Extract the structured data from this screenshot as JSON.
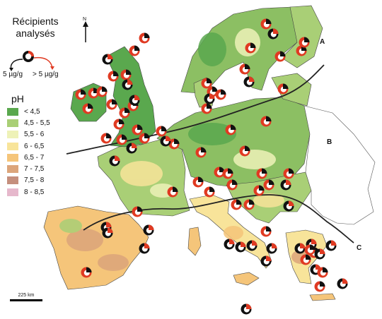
{
  "legend": {
    "title": "Récipients analysés",
    "rule_low": "5 µg/g",
    "rule_high": "> 5 µg/g",
    "north": "N",
    "ph_title": "pH",
    "ph_classes": [
      {
        "label": "< 4,5",
        "color": "#5aa84e"
      },
      {
        "label": "4,5 - 5,5",
        "color": "#a9cf76"
      },
      {
        "label": "5,5 - 6",
        "color": "#eef2b8"
      },
      {
        "label": "6 - 6,5",
        "color": "#f8e49a"
      },
      {
        "label": "6,5 - 7",
        "color": "#f5c57a"
      },
      {
        "label": "7 - 7,5",
        "color": "#dca57b"
      },
      {
        "label": "7,5 - 8",
        "color": "#c58f7d"
      },
      {
        "label": "8 - 8,5",
        "color": "#e6b8cc"
      }
    ],
    "marker_dark": "#111111",
    "marker_red": "#e03a22"
  },
  "zones": {
    "a": "A",
    "b": "B",
    "c": "C"
  },
  "scale": {
    "label": "225 km"
  },
  "colors": {
    "sea": "#ffffff",
    "unsampled": "#ffffff",
    "boundary": "#333333",
    "zone_line": "#222222"
  }
}
